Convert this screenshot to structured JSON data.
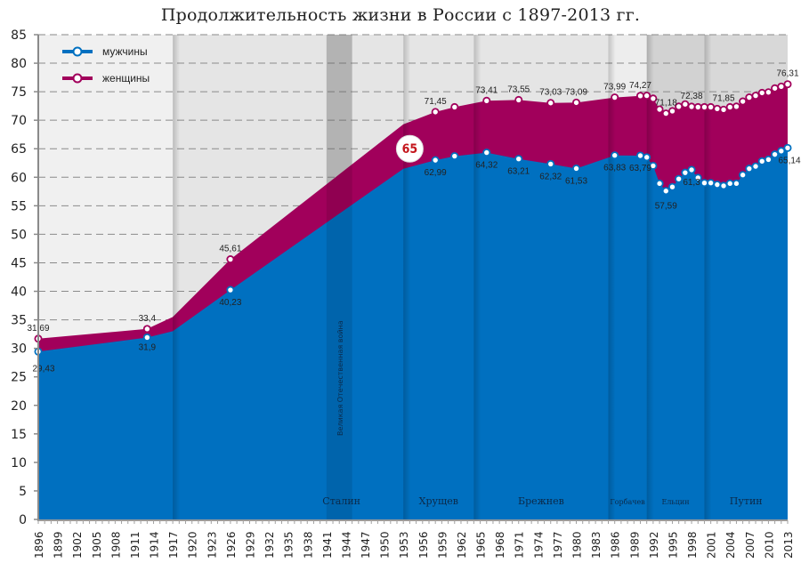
{
  "chart_data": {
    "type": "area",
    "title": "Продолжительность жизни в России с 1897-2013 гг.",
    "xlabel": "",
    "ylabel": "",
    "ylim": [
      0,
      85
    ],
    "yticks": [
      0,
      5,
      10,
      15,
      20,
      25,
      30,
      35,
      40,
      45,
      50,
      55,
      60,
      65,
      70,
      75,
      80,
      85
    ],
    "xticks": [
      1896,
      1899,
      1902,
      1905,
      1908,
      1911,
      1914,
      1917,
      1920,
      1923,
      1926,
      1929,
      1932,
      1935,
      1938,
      1941,
      1944,
      1947,
      1950,
      1953,
      1956,
      1959,
      1962,
      1965,
      1968,
      1971,
      1974,
      1977,
      1980,
      1983,
      1986,
      1989,
      1992,
      1995,
      1998,
      2001,
      2004,
      2007,
      2010,
      2013
    ],
    "grid": "horizontal dashed",
    "legend_position": "top-left",
    "series": [
      {
        "name": "мужчины",
        "color": "#0070c0",
        "points": [
          {
            "x": 1896,
            "y": 29.43,
            "label": "29,43"
          },
          {
            "x": 1913,
            "y": 31.9,
            "label": "31,9"
          },
          {
            "x": 1917,
            "y": 33.0
          },
          {
            "x": 1926,
            "y": 40.23,
            "label": "40,23"
          },
          {
            "x": 1953,
            "y": 61.5
          },
          {
            "x": 1958,
            "y": 62.99,
            "label": "62,99"
          },
          {
            "x": 1961,
            "y": 63.7
          },
          {
            "x": 1966,
            "y": 64.32,
            "label": "64,32"
          },
          {
            "x": 1971,
            "y": 63.21,
            "label": "63,21"
          },
          {
            "x": 1976,
            "y": 62.32,
            "label": "62,32"
          },
          {
            "x": 1980,
            "y": 61.53,
            "label": "61,53"
          },
          {
            "x": 1986,
            "y": 63.83,
            "label": "63,83"
          },
          {
            "x": 1990,
            "y": 63.79,
            "label": "63,79"
          },
          {
            "x": 1991,
            "y": 63.5
          },
          {
            "x": 1992,
            "y": 62.0
          },
          {
            "x": 1993,
            "y": 58.9
          },
          {
            "x": 1994,
            "y": 57.59,
            "label": "57,59"
          },
          {
            "x": 1995,
            "y": 58.3
          },
          {
            "x": 1996,
            "y": 59.7
          },
          {
            "x": 1997,
            "y": 60.8
          },
          {
            "x": 1998,
            "y": 61.3,
            "label": "61,3"
          },
          {
            "x": 1999,
            "y": 59.9
          },
          {
            "x": 2000,
            "y": 59.0
          },
          {
            "x": 2001,
            "y": 59.0
          },
          {
            "x": 2002,
            "y": 58.7
          },
          {
            "x": 2003,
            "y": 58.5
          },
          {
            "x": 2004,
            "y": 58.9
          },
          {
            "x": 2005,
            "y": 58.9
          },
          {
            "x": 2006,
            "y": 60.4
          },
          {
            "x": 2007,
            "y": 61.5
          },
          {
            "x": 2008,
            "y": 61.9
          },
          {
            "x": 2009,
            "y": 62.8
          },
          {
            "x": 2010,
            "y": 63.1
          },
          {
            "x": 2011,
            "y": 64.0
          },
          {
            "x": 2012,
            "y": 64.6
          },
          {
            "x": 2013,
            "y": 65.14,
            "label": "65,14"
          }
        ]
      },
      {
        "name": "женщины",
        "color": "#a1005b",
        "points": [
          {
            "x": 1896,
            "y": 31.69,
            "label": "31,69"
          },
          {
            "x": 1913,
            "y": 33.4,
            "label": "33,4"
          },
          {
            "x": 1917,
            "y": 35.5
          },
          {
            "x": 1926,
            "y": 45.61,
            "label": "45,61"
          },
          {
            "x": 1953,
            "y": 69.3
          },
          {
            "x": 1958,
            "y": 71.45,
            "label": "71,45"
          },
          {
            "x": 1961,
            "y": 72.3
          },
          {
            "x": 1966,
            "y": 73.41,
            "label": "73,41"
          },
          {
            "x": 1971,
            "y": 73.55,
            "label": "73,55"
          },
          {
            "x": 1976,
            "y": 73.03,
            "label": "73,03"
          },
          {
            "x": 1980,
            "y": 73.09,
            "label": "73,09"
          },
          {
            "x": 1986,
            "y": 73.99,
            "label": "73,99"
          },
          {
            "x": 1990,
            "y": 74.27,
            "label": "74,27"
          },
          {
            "x": 1991,
            "y": 74.3
          },
          {
            "x": 1992,
            "y": 73.8
          },
          {
            "x": 1993,
            "y": 71.9
          },
          {
            "x": 1994,
            "y": 71.18,
            "label": "71,18"
          },
          {
            "x": 1995,
            "y": 71.6
          },
          {
            "x": 1996,
            "y": 72.4
          },
          {
            "x": 1997,
            "y": 72.8
          },
          {
            "x": 1998,
            "y": 72.38,
            "label": "72,38"
          },
          {
            "x": 1999,
            "y": 72.3
          },
          {
            "x": 2000,
            "y": 72.3
          },
          {
            "x": 2001,
            "y": 72.3
          },
          {
            "x": 2002,
            "y": 72.0
          },
          {
            "x": 2003,
            "y": 71.85,
            "label": "71,85"
          },
          {
            "x": 2004,
            "y": 72.3
          },
          {
            "x": 2005,
            "y": 72.4
          },
          {
            "x": 2006,
            "y": 73.3
          },
          {
            "x": 2007,
            "y": 74.0
          },
          {
            "x": 2008,
            "y": 74.3
          },
          {
            "x": 2009,
            "y": 74.8
          },
          {
            "x": 2010,
            "y": 74.9
          },
          {
            "x": 2011,
            "y": 75.6
          },
          {
            "x": 2012,
            "y": 75.9
          },
          {
            "x": 2013,
            "y": 76.31,
            "label": "76,31"
          }
        ]
      }
    ],
    "periods": [
      {
        "label": "",
        "from": 1896,
        "to": 1917
      },
      {
        "label": "Сталин",
        "from": 1917,
        "to": 1953
      },
      {
        "label": "Великая Отечественная война",
        "from": 1941,
        "to": 1945,
        "vertical": true
      },
      {
        "label": "Хрущев",
        "from": 1953,
        "to": 1964
      },
      {
        "label": "Брежнев",
        "from": 1964,
        "to": 1985
      },
      {
        "label": "Горбачев",
        "from": 1985,
        "to": 1991
      },
      {
        "label": "Ельцин",
        "from": 1991,
        "to": 2000
      },
      {
        "label": "Путин",
        "from": 2000,
        "to": 2013
      }
    ],
    "annotations": [
      {
        "text": "65",
        "x": 1954,
        "y": 65,
        "style": "red circle badge"
      }
    ]
  },
  "legend": {
    "men": "мужчины",
    "women": "женщины"
  }
}
